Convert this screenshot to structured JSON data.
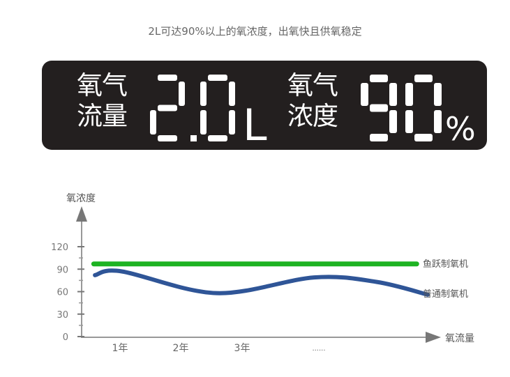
{
  "headline": "2L可达90%以上的氧浓度，出氧快且供氧稳定",
  "display": {
    "flow_label_line1": "氧气",
    "flow_label_line2": "流量",
    "flow_value": "2.0",
    "flow_unit": "L",
    "concentration_label_line1": "氧气",
    "concentration_label_line2": "浓度",
    "concentration_value": "90",
    "concentration_unit": "%",
    "background_color": "#231f1f",
    "digit_color": "#ffffff"
  },
  "chart_data": {
    "type": "line",
    "ylabel": "氧浓度",
    "xlabel": "氧流量",
    "yticks": [
      "0",
      "30",
      "60",
      "90",
      "120"
    ],
    "ylim": [
      0,
      120
    ],
    "xtick_labels": [
      "1年",
      "2年",
      "3年",
      "......"
    ],
    "grid": false,
    "legend_placement": "right of lines",
    "series": [
      {
        "name": "鱼跃制氧机",
        "color": "#1db322",
        "x": [
          0.57,
          5.86
        ],
        "y": [
          97,
          97
        ]
      },
      {
        "name": "普通制氧机",
        "color": "#2f5597",
        "x": [
          0.59,
          1.03,
          2.58,
          4.18,
          5.2,
          6.04
        ],
        "y": [
          82,
          87,
          58,
          79,
          73,
          56
        ]
      }
    ]
  }
}
